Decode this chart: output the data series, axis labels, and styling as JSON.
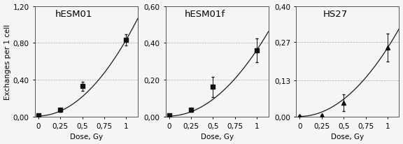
{
  "panels": [
    {
      "title": "hESM01",
      "ylabel": "Exchanges per 1 cell",
      "xlabel": "Dose, Gy",
      "ylim": [
        0,
        1.2
      ],
      "yticks": [
        0.0,
        0.4,
        0.8,
        1.2
      ],
      "yticklabels": [
        "0,00",
        "0,40",
        "0,80",
        "1,20"
      ],
      "xticks": [
        0,
        0.25,
        0.5,
        0.75,
        1
      ],
      "xticklabels": [
        "0",
        "0,25",
        "0,5",
        "0,75",
        "1"
      ],
      "data_x": [
        0,
        0.25,
        0.5,
        1.0
      ],
      "data_y": [
        0.01,
        0.07,
        0.33,
        0.83
      ],
      "data_yerr": [
        0.005,
        0.02,
        0.05,
        0.06
      ],
      "curve_a": 0.82,
      "curve_b": 0.01,
      "curve_c": 0.005,
      "marker": "s",
      "xlim": [
        -0.04,
        1.13
      ]
    },
    {
      "title": "hESM01f",
      "ylabel": "",
      "xlabel": "Dose, Gy",
      "ylim": [
        0,
        0.6
      ],
      "yticks": [
        0.0,
        0.2,
        0.4,
        0.6
      ],
      "yticklabels": [
        "0,00",
        "0,20",
        "0,40",
        "0,60"
      ],
      "xticks": [
        0,
        0.25,
        0.5,
        0.75,
        1
      ],
      "xticklabels": [
        "0",
        "0,25",
        "0,5",
        "0,75",
        "1"
      ],
      "data_x": [
        0,
        0.25,
        0.5,
        1.0
      ],
      "data_y": [
        0.005,
        0.035,
        0.16,
        0.36
      ],
      "data_yerr": [
        0.003,
        0.01,
        0.055,
        0.065
      ],
      "curve_a": 0.355,
      "curve_b": 0.005,
      "curve_c": 0.002,
      "marker": "s",
      "xlim": [
        -0.04,
        1.13
      ]
    },
    {
      "title": "HS27",
      "ylabel": "",
      "xlabel": "Dose, Gy",
      "ylim": [
        0,
        0.4
      ],
      "yticks": [
        0.0,
        0.13,
        0.27,
        0.4
      ],
      "yticklabels": [
        "0,00",
        "0,13",
        "0,27",
        "0,40"
      ],
      "xticks": [
        0,
        0.25,
        0.5,
        0.75,
        1
      ],
      "xticklabels": [
        "0",
        "0,25",
        "0,5",
        "0,75",
        "1"
      ],
      "data_x": [
        0,
        0.25,
        0.5,
        1.0
      ],
      "data_y": [
        0.002,
        0.004,
        0.05,
        0.25
      ],
      "data_yerr": [
        0.001,
        0.003,
        0.03,
        0.05
      ],
      "curve_a": 0.247,
      "curve_b": 0.002,
      "curve_c": 0.0,
      "marker": "^",
      "xlim": [
        -0.04,
        1.13
      ]
    }
  ],
  "line_color": "#1a1a1a",
  "marker_color": "#111111",
  "marker_size": 4,
  "bg_color": "#f5f5f5",
  "grid_color": "#aaaaaa",
  "font_size": 7.5,
  "title_font_size": 9.5
}
